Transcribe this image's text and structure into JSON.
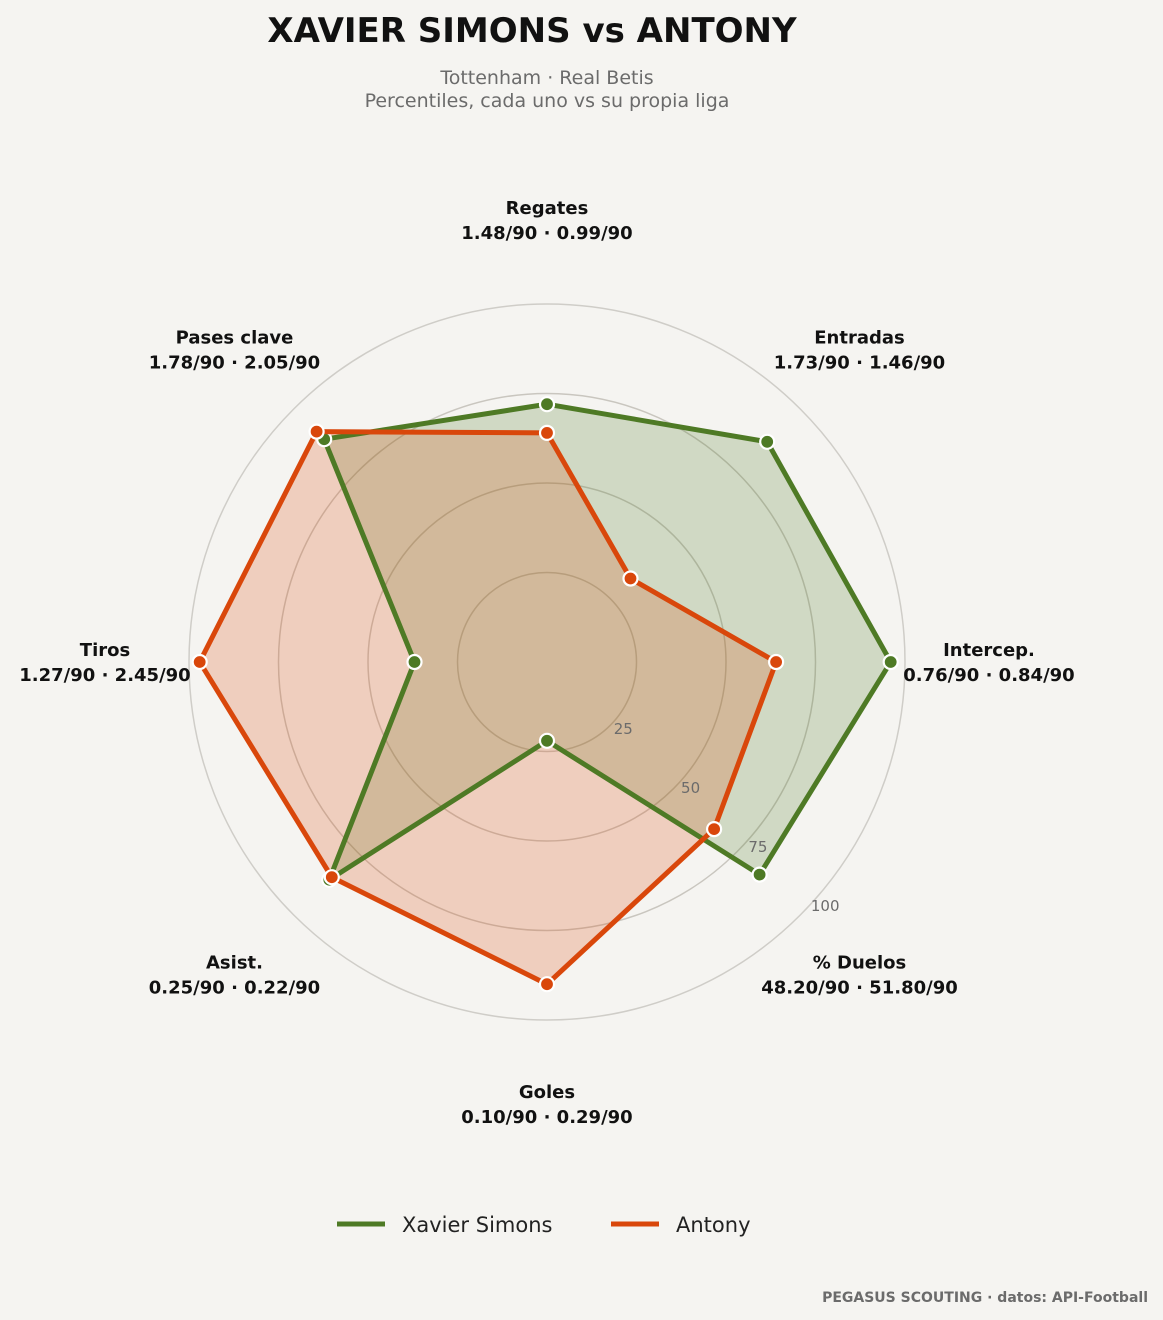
{
  "chart_data": {
    "type": "radar",
    "title": "XAVIER SIMONS  vs  ANTONY",
    "subtitle_lines": [
      "Tottenham · Real Betis",
      "Percentiles, cada uno vs su propia liga"
    ],
    "rlim": [
      0,
      100
    ],
    "radial_ticks": [
      25,
      50,
      75,
      100
    ],
    "grid": true,
    "legend_position": "bottom-center",
    "axes": [
      {
        "name": "Regates",
        "values_label": "1.48/90 · 0.99/90"
      },
      {
        "name": "Entradas",
        "values_label": "1.73/90 · 1.46/90"
      },
      {
        "name": "Intercep.",
        "values_label": "0.76/90 · 0.84/90"
      },
      {
        "name": "% Duelos",
        "values_label": "48.20/90 · 51.80/90"
      },
      {
        "name": "Goles",
        "values_label": "0.10/90 · 0.29/90"
      },
      {
        "name": "Asist.",
        "values_label": "0.25/90 · 0.22/90"
      },
      {
        "name": "Tiros",
        "values_label": "1.27/90 · 2.45/90"
      },
      {
        "name": "Pases clave",
        "values_label": "1.78/90 · 2.05/90"
      }
    ],
    "series": [
      {
        "name": "Xavier Simons",
        "color": "#4e7a25",
        "fill": "rgba(78,122,37,0.22)",
        "values": [
          72,
          87,
          96,
          84,
          22,
          86,
          37,
          88
        ]
      },
      {
        "name": "Antony",
        "color": "#d9470b",
        "fill": "rgba(217,71,11,0.22)",
        "values": [
          64,
          33,
          64,
          66,
          90,
          85,
          97,
          91
        ]
      }
    ]
  },
  "footer": "PEGASUS SCOUTING · datos: API-Football"
}
